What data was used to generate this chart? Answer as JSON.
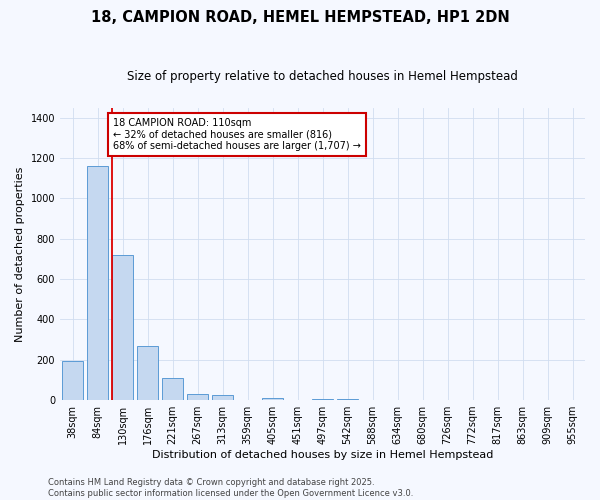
{
  "title": "18, CAMPION ROAD, HEMEL HEMPSTEAD, HP1 2DN",
  "subtitle": "Size of property relative to detached houses in Hemel Hempstead",
  "xlabel": "Distribution of detached houses by size in Hemel Hempstead",
  "ylabel": "Number of detached properties",
  "categories": [
    "38sqm",
    "84sqm",
    "130sqm",
    "176sqm",
    "221sqm",
    "267sqm",
    "313sqm",
    "359sqm",
    "405sqm",
    "451sqm",
    "497sqm",
    "542sqm",
    "588sqm",
    "634sqm",
    "680sqm",
    "726sqm",
    "772sqm",
    "817sqm",
    "863sqm",
    "909sqm",
    "955sqm"
  ],
  "values": [
    195,
    1160,
    720,
    270,
    110,
    30,
    27,
    0,
    8,
    0,
    5,
    3,
    2,
    0,
    0,
    0,
    0,
    0,
    0,
    0,
    0
  ],
  "bar_color": "#c5d8f0",
  "bar_edge_color": "#5b9bd5",
  "background_color": "#f5f8ff",
  "grid_color": "#d0ddf0",
  "annotation_text": "18 CAMPION ROAD: 110sqm\n← 32% of detached houses are smaller (816)\n68% of semi-detached houses are larger (1,707) →",
  "annotation_box_color": "#ffffff",
  "annotation_box_edge_color": "#cc0000",
  "red_line_color": "#dd0000",
  "footer": "Contains HM Land Registry data © Crown copyright and database right 2025.\nContains public sector information licensed under the Open Government Licence v3.0.",
  "ylim": [
    0,
    1450
  ],
  "title_fontsize": 10.5,
  "subtitle_fontsize": 8.5,
  "axis_fontsize": 8,
  "tick_fontsize": 7,
  "annotation_fontsize": 7,
  "footer_fontsize": 6
}
